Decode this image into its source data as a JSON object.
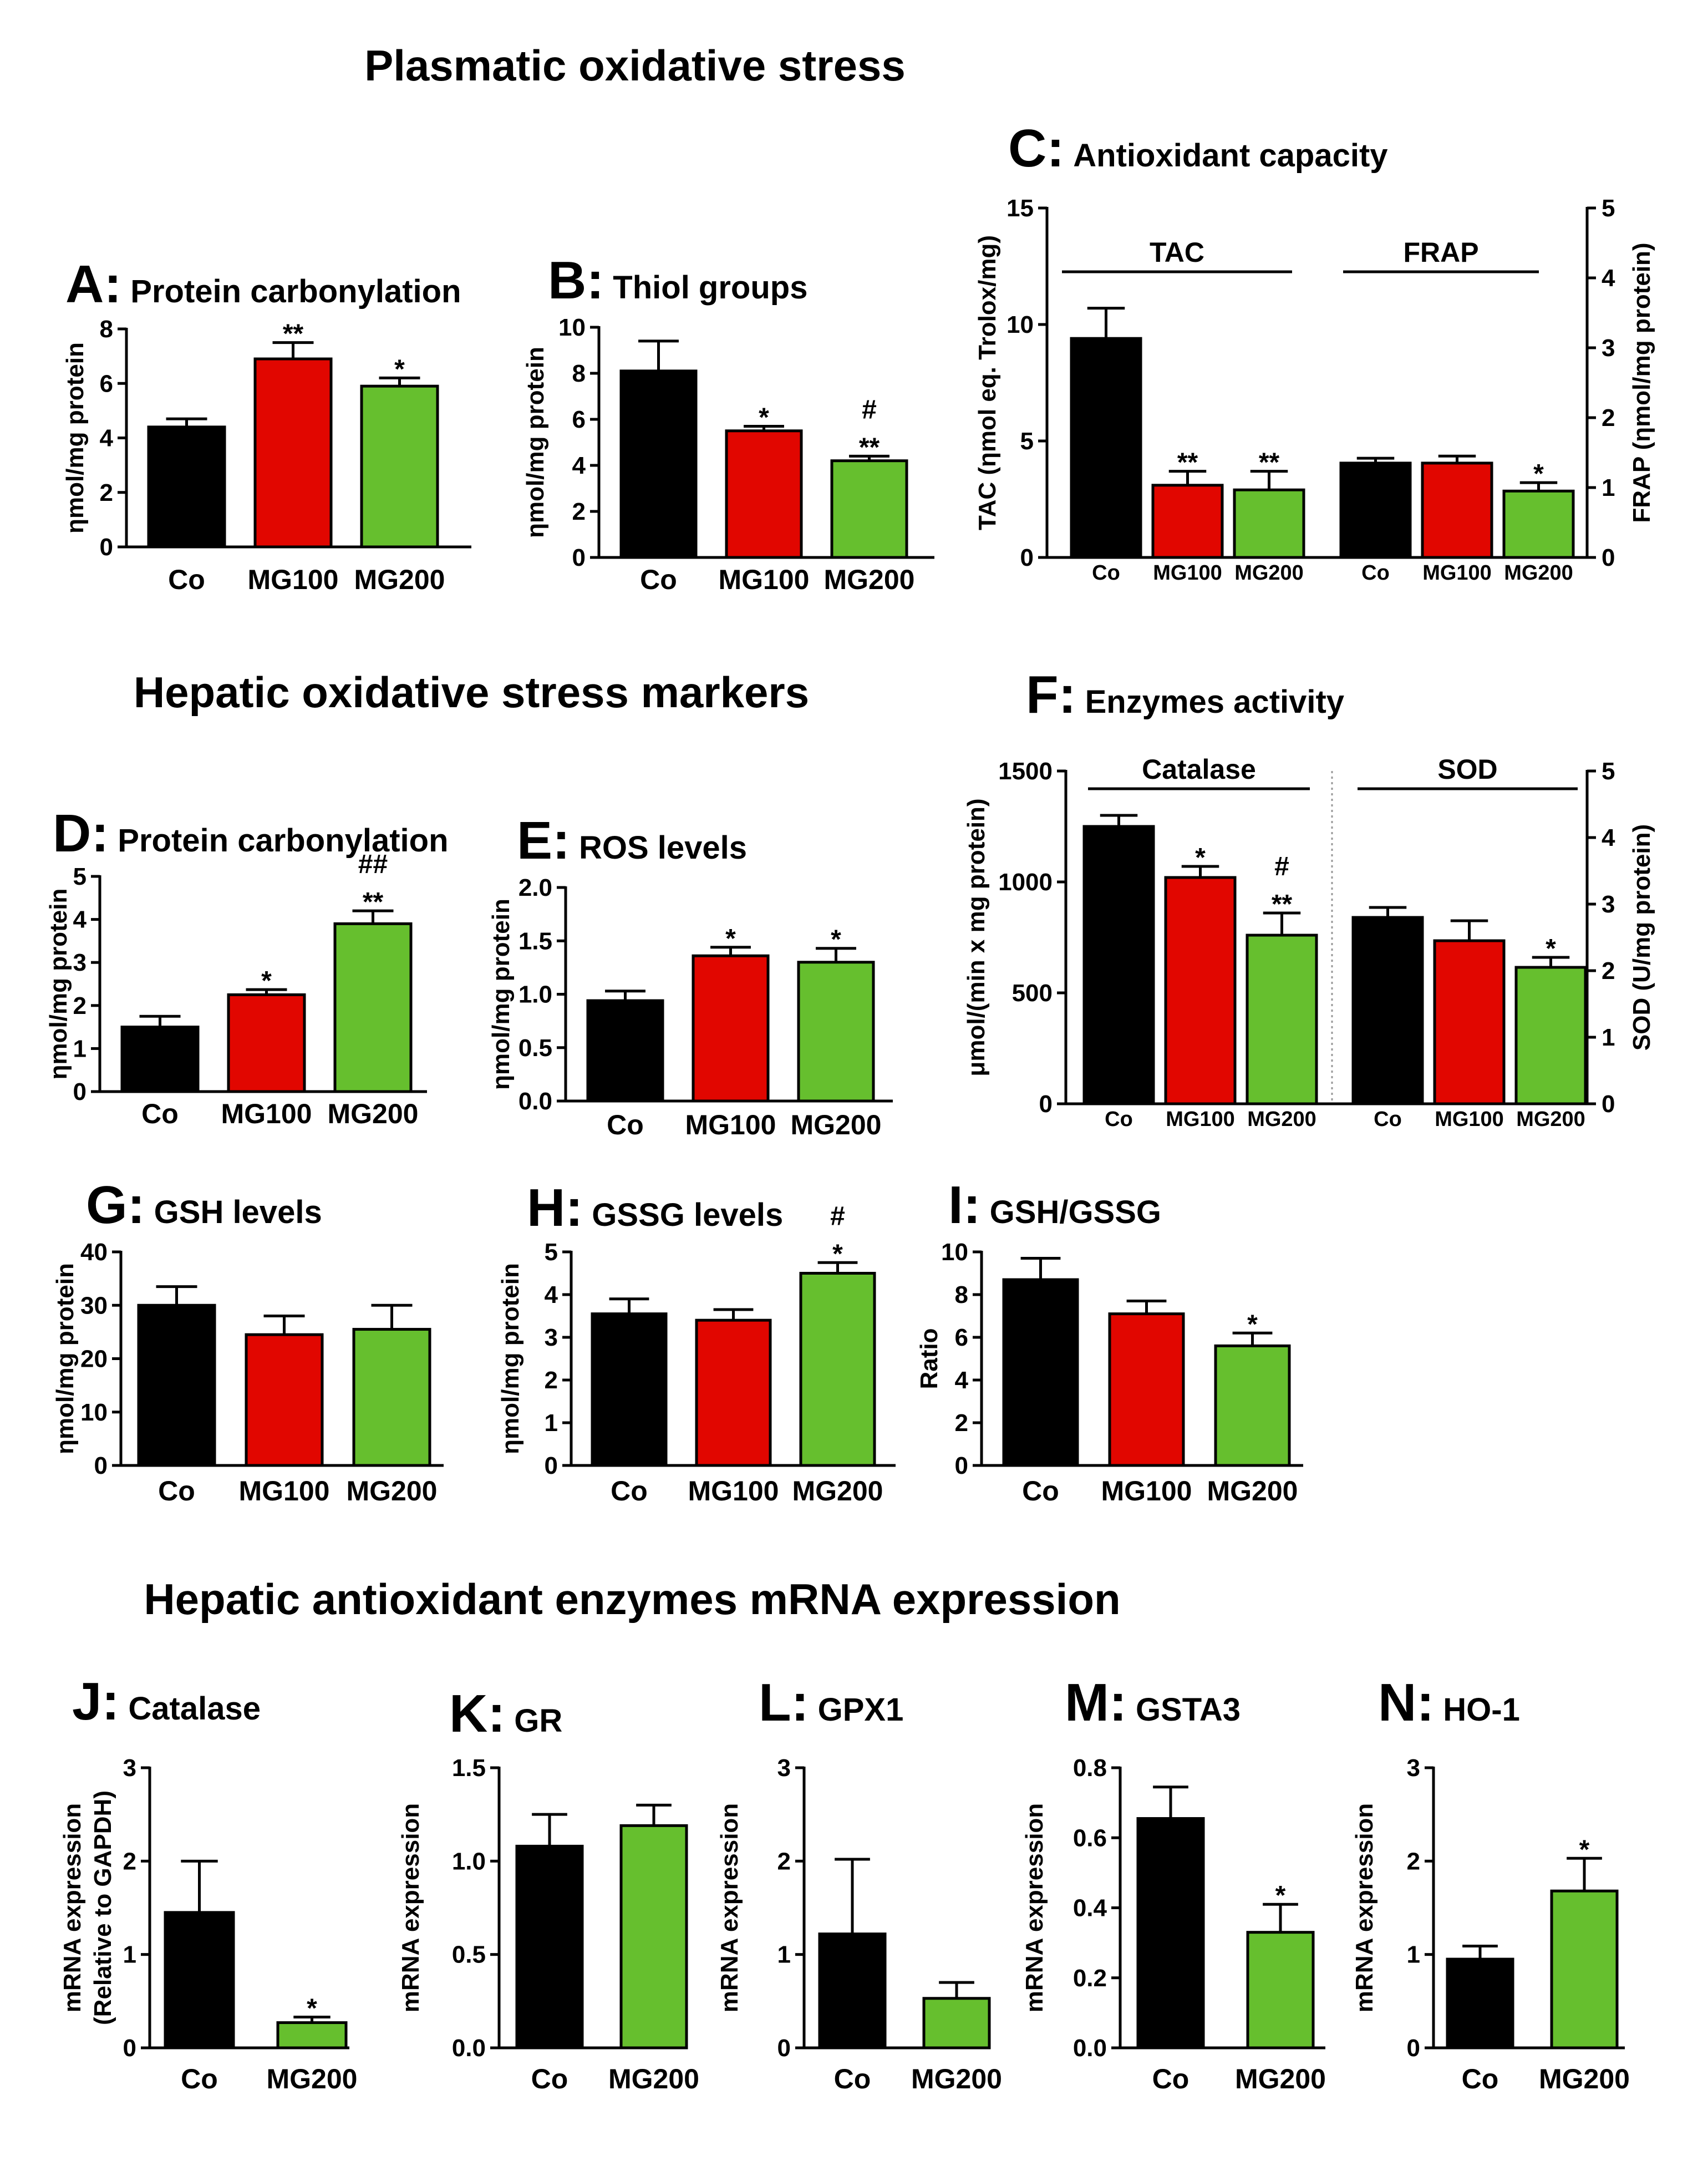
{
  "sections": [
    {
      "id": "plasma",
      "title": "Plasmatic oxidative stress"
    },
    {
      "id": "hepatic",
      "title": "Hepatic oxidative stress markers"
    },
    {
      "id": "mrna",
      "title": "Hepatic antioxidant enzymes mRNA expression"
    }
  ],
  "colors": {
    "Co": "#000000",
    "MG100": "#e10600",
    "MG200": "#66bf2e"
  },
  "chart_data": [
    {
      "id": "A",
      "type": "bar",
      "letter": "A:",
      "title": "Protein carbonylation",
      "ylabel": [
        "ηmol/mg protein"
      ],
      "ylim": [
        0,
        8
      ],
      "yticks": [
        "0",
        "2",
        "4",
        "6",
        "8"
      ],
      "categories": [
        "Co",
        "MG100",
        "MG200"
      ],
      "values": [
        4.4,
        6.9,
        5.9
      ],
      "errors": [
        0.3,
        0.6,
        0.3
      ],
      "sig": [
        [],
        [
          "**"
        ],
        [
          "*"
        ]
      ]
    },
    {
      "id": "B",
      "type": "bar",
      "letter": "B:",
      "title": "Thiol groups",
      "ylabel": [
        "ηmol/mg protein"
      ],
      "ylim": [
        0,
        10
      ],
      "yticks": [
        "0",
        "2",
        "4",
        "6",
        "8",
        "10"
      ],
      "categories": [
        "Co",
        "MG100",
        "MG200"
      ],
      "values": [
        8.1,
        5.5,
        4.2
      ],
      "errors": [
        1.3,
        0.2,
        0.2
      ],
      "sig": [
        [],
        [
          "*"
        ],
        [
          "#",
          "**"
        ]
      ]
    },
    {
      "id": "C",
      "type": "bar",
      "letter": "C:",
      "title": "Antioxidant capacity",
      "ylabel": [
        "TAC (ηmol eq. Trolox/mg)"
      ],
      "ylim": [
        0,
        15
      ],
      "yticks": [
        "0",
        "5",
        "10",
        "15"
      ],
      "ylabel_right": [
        "FRAP (ηmol/mg protein)"
      ],
      "ylim_right": [
        0,
        5
      ],
      "yticks_right": [
        "0",
        "1",
        "2",
        "3",
        "4",
        "5"
      ],
      "groups": [
        {
          "name": "TAC",
          "categories": [
            "Co",
            "MG100",
            "MG200"
          ],
          "values": [
            9.4,
            3.1,
            2.9
          ],
          "errors": [
            1.3,
            0.6,
            0.8
          ],
          "sig": [
            [],
            [
              "**"
            ],
            [
              "**"
            ]
          ]
        },
        {
          "name": "FRAP",
          "categories": [
            "Co",
            "MG100",
            "MG200"
          ],
          "values": [
            1.35,
            1.35,
            0.95
          ],
          "errors": [
            0.07,
            0.1,
            0.12
          ],
          "sig": [
            [],
            [],
            [
              "*"
            ]
          ]
        }
      ]
    },
    {
      "id": "D",
      "type": "bar",
      "letter": "D:",
      "title": "Protein carbonylation",
      "ylabel": [
        "ηmol/mg protein"
      ],
      "ylim": [
        0,
        5
      ],
      "yticks": [
        "0",
        "1",
        "2",
        "3",
        "4",
        "5"
      ],
      "categories": [
        "Co",
        "MG100",
        "MG200"
      ],
      "values": [
        1.5,
        2.25,
        3.9
      ],
      "errors": [
        0.25,
        0.12,
        0.3
      ],
      "sig": [
        [],
        [
          "*"
        ],
        [
          "##",
          "**"
        ]
      ]
    },
    {
      "id": "E",
      "type": "bar",
      "letter": "E:",
      "title": "ROS levels",
      "ylabel": [
        "ηmol/mg protein"
      ],
      "ylim": [
        0,
        2
      ],
      "yticks": [
        "0.0",
        "0.5",
        "1.0",
        "1.5",
        "2.0"
      ],
      "categories": [
        "Co",
        "MG100",
        "MG200"
      ],
      "values": [
        0.94,
        1.36,
        1.3
      ],
      "errors": [
        0.09,
        0.08,
        0.13
      ],
      "sig": [
        [],
        [
          "*"
        ],
        [
          "*"
        ]
      ]
    },
    {
      "id": "F",
      "type": "bar",
      "letter": "F:",
      "title": "Enzymes activity",
      "ylabel": [
        "μmol/(min x mg protein)"
      ],
      "ylim": [
        0,
        1500
      ],
      "yticks": [
        "0",
        "500",
        "1000",
        "1500"
      ],
      "ylabel_right": [
        "SOD (U/mg protein)"
      ],
      "ylim_right": [
        0,
        5
      ],
      "yticks_right": [
        "0",
        "1",
        "2",
        "3",
        "4",
        "5"
      ],
      "groups": [
        {
          "name": "Catalase",
          "categories": [
            "Co",
            "MG100",
            "MG200"
          ],
          "values": [
            1250,
            1020,
            760
          ],
          "errors": [
            50,
            50,
            100
          ],
          "sig": [
            [],
            [
              "*"
            ],
            [
              "#",
              "**"
            ]
          ]
        },
        {
          "name": "SOD",
          "categories": [
            "Co",
            "MG100",
            "MG200"
          ],
          "values": [
            2.8,
            2.45,
            2.05
          ],
          "errors": [
            0.15,
            0.3,
            0.15
          ],
          "sig": [
            [],
            [],
            [
              "*"
            ]
          ]
        }
      ]
    },
    {
      "id": "G",
      "type": "bar",
      "letter": "G:",
      "title": "GSH levels",
      "ylabel": [
        "ηmol/mg protein"
      ],
      "ylim": [
        0,
        40
      ],
      "yticks": [
        "0",
        "10",
        "20",
        "30",
        "40"
      ],
      "categories": [
        "Co",
        "MG100",
        "MG200"
      ],
      "values": [
        30,
        24.5,
        25.5
      ],
      "errors": [
        3.5,
        3.5,
        4.5
      ],
      "sig": [
        [],
        [],
        []
      ]
    },
    {
      "id": "H",
      "type": "bar",
      "letter": "H:",
      "title": "GSSG levels",
      "ylabel": [
        "ηmol/mg protein"
      ],
      "ylim": [
        0,
        5
      ],
      "yticks": [
        "0",
        "1",
        "2",
        "3",
        "4",
        "5"
      ],
      "categories": [
        "Co",
        "MG100",
        "MG200"
      ],
      "values": [
        3.55,
        3.4,
        4.5
      ],
      "errors": [
        0.35,
        0.25,
        0.25
      ],
      "sig": [
        [],
        [],
        [
          "#",
          "*"
        ]
      ]
    },
    {
      "id": "I",
      "type": "bar",
      "letter": "I:",
      "title": "GSH/GSSG",
      "ylabel": [
        "Ratio"
      ],
      "ylim": [
        0,
        10
      ],
      "yticks": [
        "0",
        "2",
        "4",
        "6",
        "8",
        "10"
      ],
      "categories": [
        "Co",
        "MG100",
        "MG200"
      ],
      "values": [
        8.7,
        7.1,
        5.6
      ],
      "errors": [
        1.0,
        0.6,
        0.6
      ],
      "sig": [
        [],
        [],
        [
          "*"
        ]
      ]
    },
    {
      "id": "J",
      "type": "bar",
      "letter": "J:",
      "title": "Catalase",
      "ylabel": [
        "mRNA expression",
        "(Relative to GAPDH)"
      ],
      "ylim": [
        0,
        3
      ],
      "yticks": [
        "0",
        "1",
        "2",
        "3"
      ],
      "categories": [
        "Co",
        "MG200"
      ],
      "values": [
        1.45,
        0.27
      ],
      "errors": [
        0.55,
        0.06
      ],
      "sig": [
        [],
        [
          "*"
        ]
      ]
    },
    {
      "id": "K",
      "type": "bar",
      "letter": "K:",
      "title": "GR",
      "ylabel": [
        "mRNA expression"
      ],
      "ylim": [
        0,
        1.5
      ],
      "yticks": [
        "0.0",
        "0.5",
        "1.0",
        "1.5"
      ],
      "categories": [
        "Co",
        "MG200"
      ],
      "values": [
        1.08,
        1.19
      ],
      "errors": [
        0.17,
        0.11
      ],
      "sig": [
        [],
        []
      ]
    },
    {
      "id": "L",
      "type": "bar",
      "letter": "L:",
      "title": "GPX1",
      "ylabel": [
        "mRNA expression"
      ],
      "ylim": [
        0,
        3
      ],
      "yticks": [
        "0",
        "1",
        "2",
        "3"
      ],
      "categories": [
        "Co",
        "MG200"
      ],
      "values": [
        1.22,
        0.53
      ],
      "errors": [
        0.8,
        0.17
      ],
      "sig": [
        [],
        []
      ]
    },
    {
      "id": "M",
      "type": "bar",
      "letter": "M:",
      "title": "GSTA3",
      "ylabel": [
        "mRNA expression"
      ],
      "ylim": [
        0,
        0.8
      ],
      "yticks": [
        "0.0",
        "0.2",
        "0.4",
        "0.6",
        "0.8"
      ],
      "categories": [
        "Co",
        "MG200"
      ],
      "values": [
        0.655,
        0.33
      ],
      "errors": [
        0.09,
        0.08
      ],
      "sig": [
        [],
        [
          "*"
        ]
      ]
    },
    {
      "id": "N",
      "type": "bar",
      "letter": "N:",
      "title": "HO-1",
      "ylabel": [
        "mRNA expression"
      ],
      "ylim": [
        0,
        3
      ],
      "yticks": [
        "0",
        "1",
        "2",
        "3"
      ],
      "categories": [
        "Co",
        "MG200"
      ],
      "values": [
        0.95,
        1.68
      ],
      "errors": [
        0.14,
        0.35
      ],
      "sig": [
        [],
        [
          "*"
        ]
      ]
    }
  ]
}
